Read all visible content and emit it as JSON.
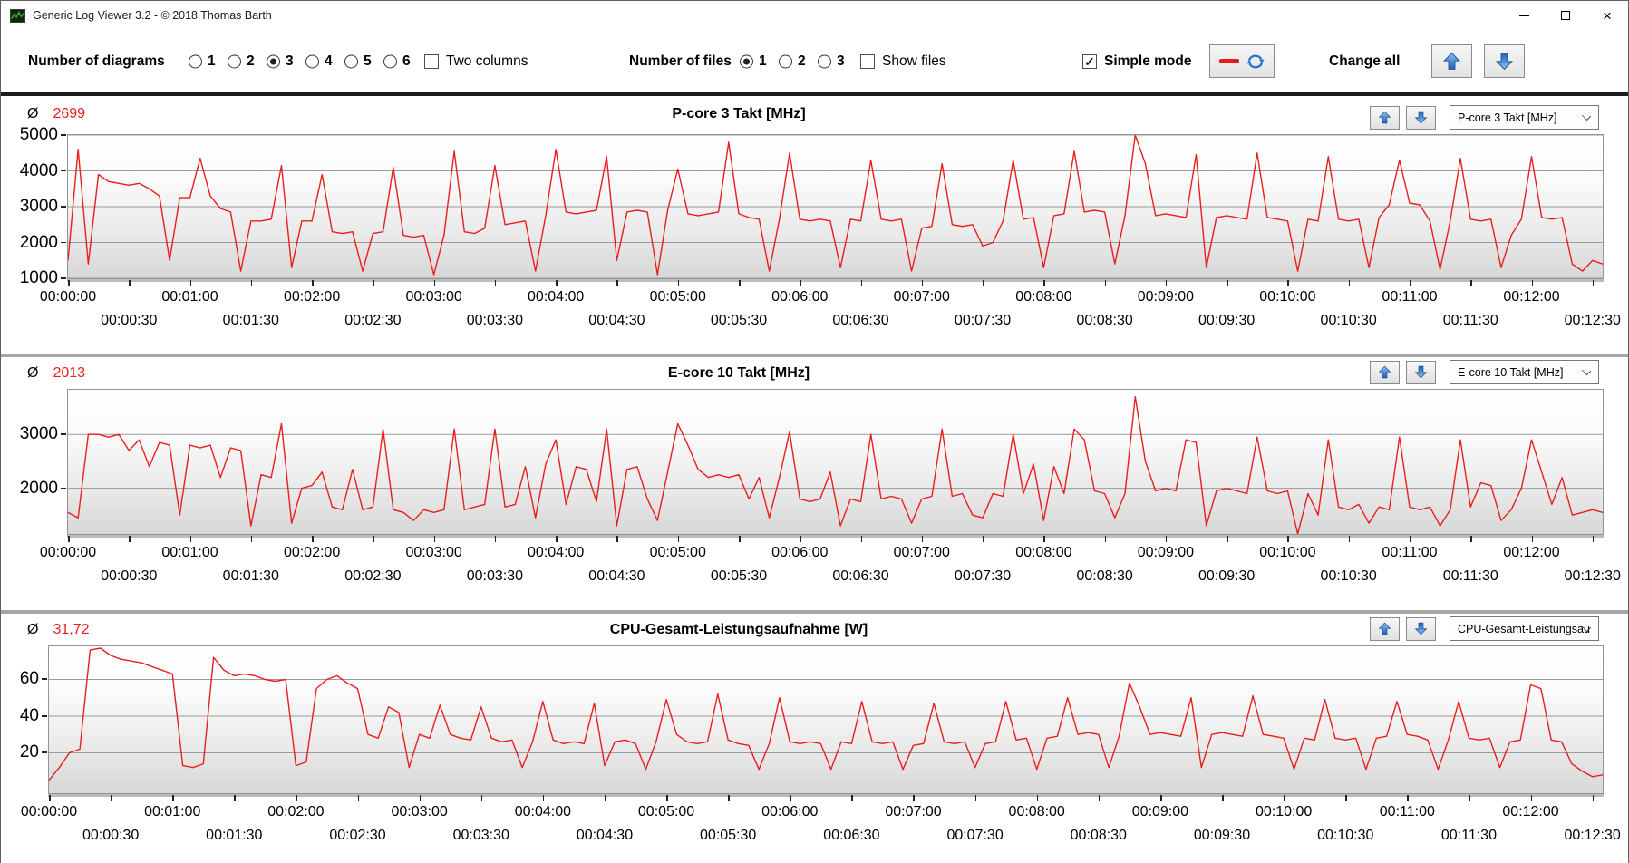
{
  "window": {
    "title": "Generic Log Viewer 3.2 - © 2018 Thomas Barth"
  },
  "icons": {
    "average_symbol": "Ø",
    "checkmark": "✓",
    "close_glyph": "×"
  },
  "toolbar": {
    "diagrams_label": "Number of diagrams",
    "diagram_options": [
      "1",
      "2",
      "3",
      "4",
      "5",
      "6"
    ],
    "diagrams_selected": "3",
    "two_columns_label": "Two columns",
    "two_columns_checked": false,
    "files_label": "Number of files",
    "file_options": [
      "1",
      "2",
      "3"
    ],
    "files_selected": "1",
    "show_files_label": "Show files",
    "show_files_checked": false,
    "simple_mode_label": "Simple mode",
    "simple_mode_checked": true,
    "change_all_label": "Change all"
  },
  "panels": [
    {
      "avg_value": "2699",
      "title": "P-core 3 Takt [MHz]",
      "dropdown_value": "P-core 3 Takt [MHz]"
    },
    {
      "avg_value": "2013",
      "title": "E-core 10 Takt [MHz]",
      "dropdown_value": "E-core 10 Takt [MHz]"
    },
    {
      "avg_value": "31,72",
      "title": "CPU-Gesamt-Leistungsaufnahme [W]",
      "dropdown_value": "CPU-Gesamt-Leistungsau"
    }
  ],
  "time_axis": {
    "tick_interval_s": 30,
    "x_max_s": 755,
    "row1": [
      "00:00:00",
      "00:01:00",
      "00:02:00",
      "00:03:00",
      "00:04:00",
      "00:05:00",
      "00:06:00",
      "00:07:00",
      "00:08:00",
      "00:09:00",
      "00:10:00",
      "00:11:00",
      "00:12:00"
    ],
    "row2": [
      "00:00:30",
      "00:01:30",
      "00:02:30",
      "00:03:30",
      "00:04:30",
      "00:05:30",
      "00:06:30",
      "00:07:30",
      "00:08:30",
      "00:09:30",
      "00:10:30",
      "00:11:30",
      "00:12:30"
    ]
  },
  "chart_data": [
    {
      "type": "line",
      "title": "P-core 3 Takt [MHz]",
      "average": 2699,
      "line_color": "#e81e1e",
      "ylim": [
        1000,
        5000
      ],
      "y_ticks": [
        {
          "value": 5000,
          "label": "5000"
        },
        {
          "value": 4000,
          "label": "4000"
        },
        {
          "value": 3000,
          "label": "3000"
        },
        {
          "value": 2000,
          "label": "2000"
        },
        {
          "value": 1000,
          "label": "1000"
        }
      ],
      "sample_interval_s": 5,
      "values": [
        1500,
        4600,
        1400,
        3900,
        3700,
        3650,
        3600,
        3650,
        3500,
        3300,
        1500,
        3250,
        3250,
        4350,
        3300,
        2950,
        2850,
        1200,
        2600,
        2600,
        2650,
        4150,
        1300,
        2600,
        2600,
        3900,
        2300,
        2250,
        2300,
        1200,
        2250,
        2300,
        4100,
        2200,
        2150,
        2200,
        1100,
        2200,
        4550,
        2300,
        2250,
        2400,
        4150,
        2500,
        2550,
        2600,
        1200,
        2750,
        4600,
        2850,
        2800,
        2850,
        2900,
        4400,
        1500,
        2850,
        2900,
        2850,
        1100,
        2900,
        4050,
        2800,
        2750,
        2800,
        2850,
        4800,
        2800,
        2700,
        2650,
        1200,
        2650,
        4500,
        2650,
        2600,
        2650,
        2600,
        1300,
        2650,
        2600,
        4300,
        2650,
        2600,
        2650,
        1200,
        2400,
        2450,
        4200,
        2500,
        2450,
        2500,
        1900,
        2000,
        2600,
        4300,
        2650,
        2700,
        1300,
        2750,
        2800,
        4550,
        2850,
        2900,
        2850,
        1400,
        2750,
        5000,
        4200,
        2750,
        2800,
        2750,
        2700,
        4450,
        1300,
        2700,
        2750,
        2700,
        2650,
        4500,
        2700,
        2650,
        2600,
        1200,
        2650,
        2600,
        4400,
        2650,
        2600,
        2650,
        1300,
        2700,
        3050,
        4300,
        3100,
        3050,
        2600,
        1250,
        2600,
        4350,
        2650,
        2600,
        2650,
        1300,
        2200,
        2650,
        4400,
        2700,
        2650,
        2700,
        1400,
        1200,
        1500,
        1400
      ]
    },
    {
      "type": "line",
      "title": "E-core 10 Takt [MHz]",
      "average": 2013,
      "line_color": "#e81e1e",
      "ylim": [
        1150,
        3830
      ],
      "y_ticks": [
        {
          "value": 3000,
          "label": "3000"
        },
        {
          "value": 2000,
          "label": "2000"
        }
      ],
      "sample_interval_s": 5,
      "values": [
        1550,
        1450,
        3000,
        3000,
        2950,
        3000,
        2700,
        2900,
        2400,
        2850,
        2800,
        1500,
        2800,
        2750,
        2800,
        2200,
        2750,
        2700,
        1300,
        2250,
        2200,
        3200,
        1350,
        2000,
        2050,
        2300,
        1650,
        1600,
        2350,
        1600,
        1650,
        3100,
        1600,
        1550,
        1400,
        1600,
        1550,
        1600,
        3100,
        1600,
        1650,
        1700,
        3100,
        1650,
        1700,
        2400,
        1450,
        2450,
        2900,
        1700,
        2400,
        2350,
        1750,
        3100,
        1300,
        2350,
        2400,
        1800,
        1400,
        2300,
        3200,
        2800,
        2350,
        2200,
        2250,
        2200,
        2250,
        1800,
        2200,
        1450,
        2200,
        3050,
        1800,
        1750,
        1800,
        2300,
        1300,
        1800,
        1750,
        3000,
        1800,
        1850,
        1800,
        1350,
        1800,
        1850,
        3100,
        1850,
        1900,
        1500,
        1450,
        1900,
        1850,
        3000,
        1900,
        2450,
        1400,
        2400,
        1900,
        3100,
        2900,
        1950,
        1900,
        1450,
        1900,
        3700,
        2500,
        1950,
        2000,
        1950,
        2900,
        2850,
        1300,
        1950,
        2000,
        1950,
        1900,
        2950,
        1950,
        1900,
        1950,
        1150,
        1900,
        1500,
        2900,
        1650,
        1600,
        1700,
        1350,
        1650,
        1600,
        2950,
        1650,
        1600,
        1650,
        1300,
        1600,
        2900,
        1650,
        2100,
        2050,
        1400,
        1600,
        2000,
        2900,
        2300,
        1700,
        2200,
        1500,
        1550,
        1600,
        1550
      ]
    },
    {
      "type": "line",
      "title": "CPU-Gesamt-Leistungsaufnahme [W]",
      "average": 31.72,
      "line_color": "#e81e1e",
      "ylim": [
        -2,
        78
      ],
      "y_ticks": [
        {
          "value": 60,
          "label": "60"
        },
        {
          "value": 40,
          "label": "40"
        },
        {
          "value": 20,
          "label": "20"
        }
      ],
      "sample_interval_s": 5,
      "values": [
        5,
        12,
        20,
        22,
        76,
        77,
        73,
        71,
        70,
        69,
        67,
        65,
        63,
        13,
        12,
        14,
        72,
        65,
        62,
        63,
        62,
        60,
        59,
        60,
        13,
        15,
        55,
        60,
        62,
        58,
        55,
        30,
        28,
        45,
        42,
        12,
        30,
        28,
        46,
        30,
        28,
        27,
        45,
        28,
        26,
        27,
        12,
        26,
        48,
        27,
        25,
        26,
        25,
        47,
        13,
        26,
        27,
        25,
        11,
        26,
        49,
        30,
        26,
        25,
        26,
        52,
        27,
        25,
        24,
        11,
        25,
        50,
        26,
        25,
        26,
        25,
        11,
        26,
        25,
        48,
        26,
        25,
        26,
        11,
        24,
        25,
        47,
        26,
        25,
        26,
        12,
        25,
        26,
        48,
        27,
        28,
        11,
        28,
        29,
        50,
        30,
        31,
        30,
        12,
        29,
        58,
        45,
        30,
        31,
        30,
        29,
        50,
        12,
        30,
        31,
        30,
        29,
        51,
        30,
        29,
        28,
        11,
        28,
        27,
        49,
        28,
        27,
        28,
        11,
        28,
        29,
        48,
        30,
        29,
        27,
        11,
        27,
        48,
        28,
        27,
        28,
        12,
        26,
        27,
        57,
        55,
        27,
        26,
        14,
        10,
        7,
        8
      ]
    }
  ]
}
